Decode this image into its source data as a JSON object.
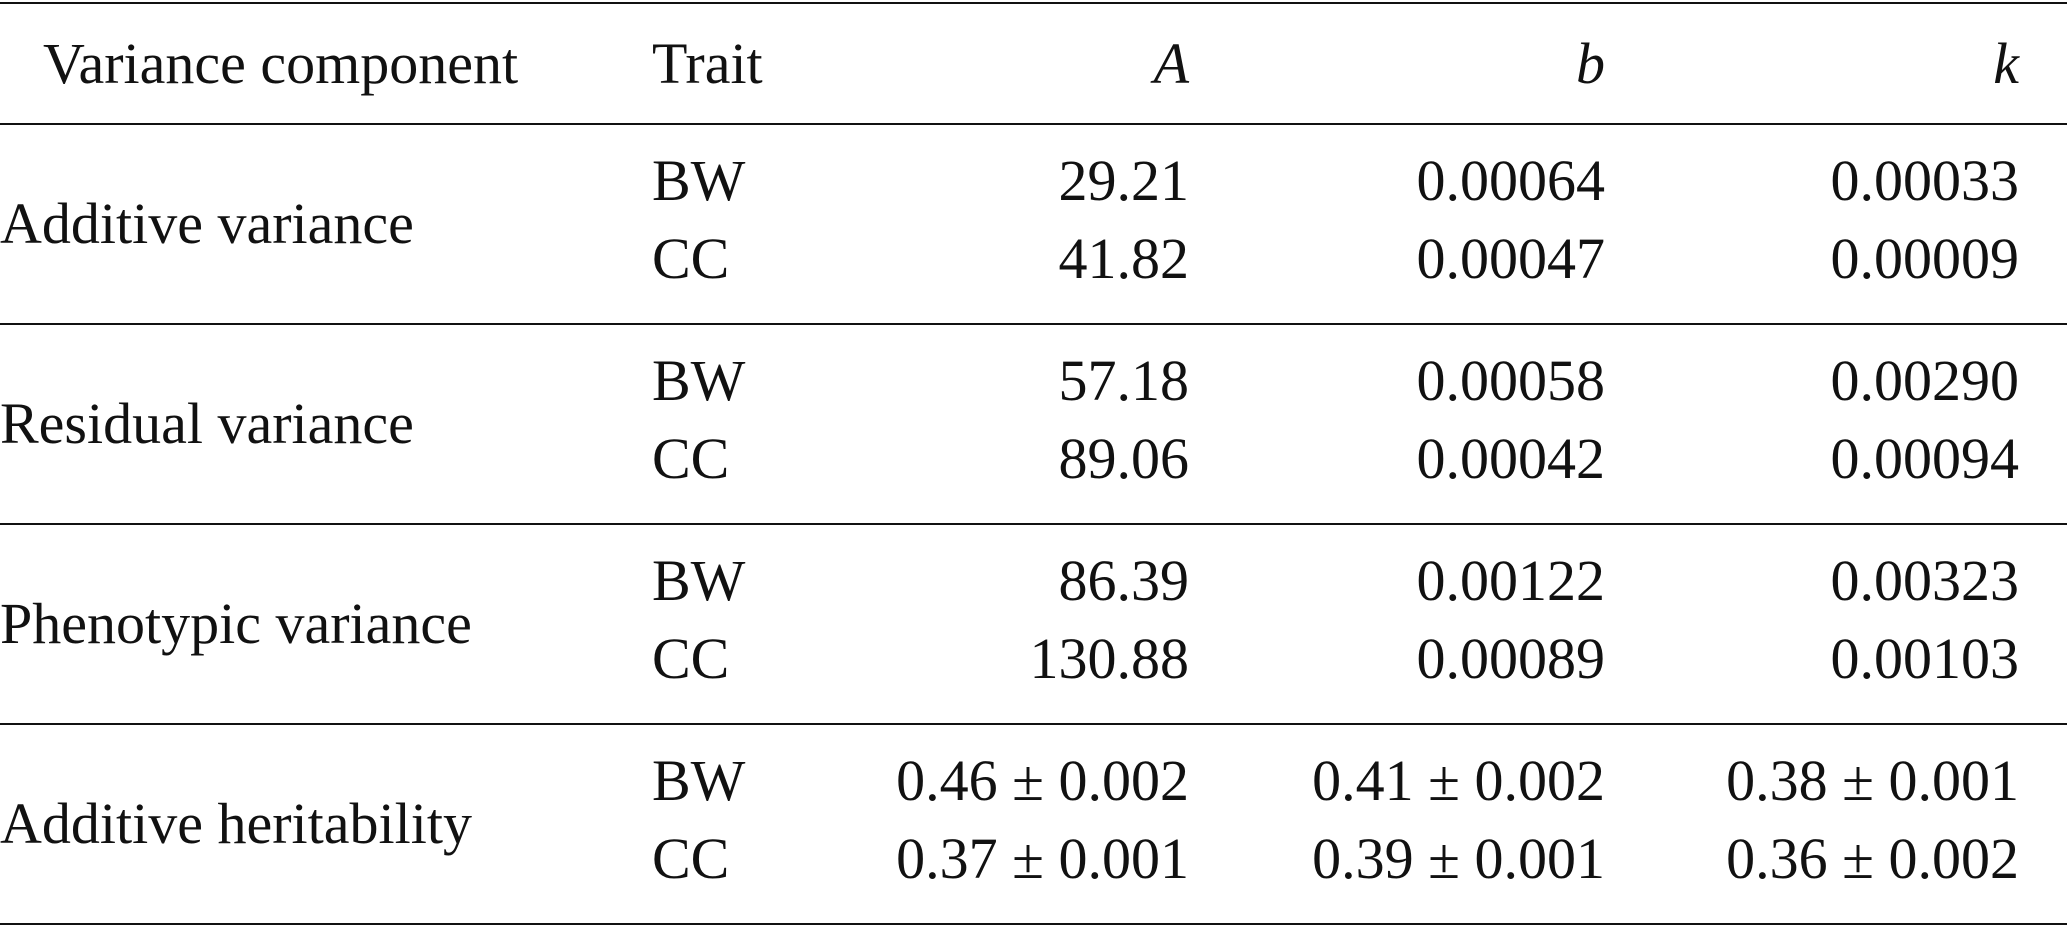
{
  "table": {
    "header": [
      "Variance component",
      "Trait",
      "A",
      "b",
      "k"
    ],
    "groups": [
      {
        "component": "Additive variance",
        "rows": [
          [
            "BW",
            "29.21",
            "0.00064",
            "0.00033"
          ],
          [
            "CC",
            "41.82",
            "0.00047",
            "0.00009"
          ]
        ]
      },
      {
        "component": "Residual variance",
        "rows": [
          [
            "BW",
            "57.18",
            "0.00058",
            "0.00290"
          ],
          [
            "CC",
            "89.06",
            "0.00042",
            "0.00094"
          ]
        ]
      },
      {
        "component": "Phenotypic variance",
        "rows": [
          [
            "BW",
            "86.39",
            "0.00122",
            "0.00323"
          ],
          [
            "CC",
            "130.88",
            "0.00089",
            "0.00103"
          ]
        ]
      },
      {
        "component": "Additive heritability",
        "rows": [
          [
            "BW",
            "0.46 ± 0.002",
            "0.41 ± 0.002",
            "0.38 ± 0.001"
          ],
          [
            "CC",
            "0.37 ± 0.001",
            "0.39 ± 0.001",
            "0.36 ± 0.002"
          ]
        ]
      }
    ]
  }
}
